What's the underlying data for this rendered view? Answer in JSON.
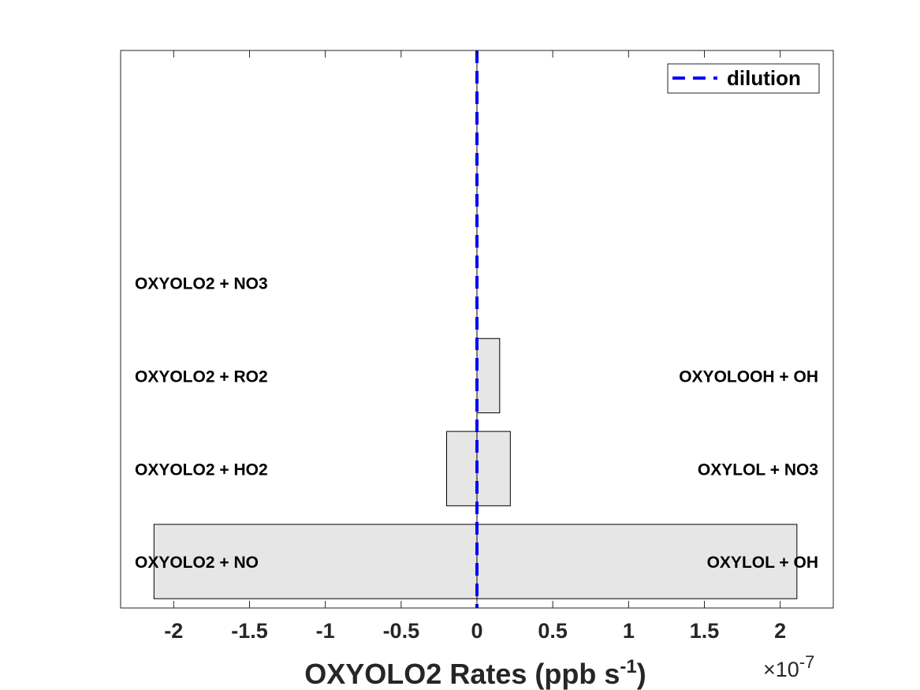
{
  "chart_data": {
    "type": "bar",
    "orientation": "horizontal",
    "xlabel_main": "OXYOLO2 Rates (ppb s",
    "xlabel_sup": "-1",
    "xlabel_close": ")",
    "exponent_label": "×10",
    "exponent_sup": "-7",
    "xlim": [
      -2.35,
      2.35
    ],
    "xtick_values": [
      -2,
      -1.5,
      -1,
      -0.5,
      0,
      0.5,
      1,
      1.5,
      2
    ],
    "xtick_labels": [
      "-2",
      "-1.5",
      "-1",
      "-0.5",
      "0",
      "0.5",
      "1",
      "1.5",
      "2"
    ],
    "slots": 6,
    "bars": [
      {
        "slot": 1,
        "left_label": "OXYOLO2 + NO",
        "right_label": "OXYLOL + OH",
        "neg": -2.13,
        "pos": 2.11
      },
      {
        "slot": 2,
        "left_label": "OXYOLO2 + HO2",
        "right_label": "OXYLOL + NO3",
        "neg": -0.2,
        "pos": 0.22
      },
      {
        "slot": 3,
        "left_label": "OXYOLO2 + RO2",
        "right_label": "OXYOLOOH + OH",
        "neg": 0,
        "pos": 0.15
      },
      {
        "slot": 4,
        "left_label": "OXYOLO2 + NO3",
        "right_label": "",
        "neg": 0,
        "pos": 0
      }
    ],
    "dilution": 0,
    "legend": {
      "entries": [
        "dilution"
      ],
      "position": "top-right"
    },
    "colors": {
      "bar_fill": "#e6e6e6",
      "bar_edge": "#000000",
      "dilution": "#0000ff",
      "axis": "#262626"
    }
  }
}
